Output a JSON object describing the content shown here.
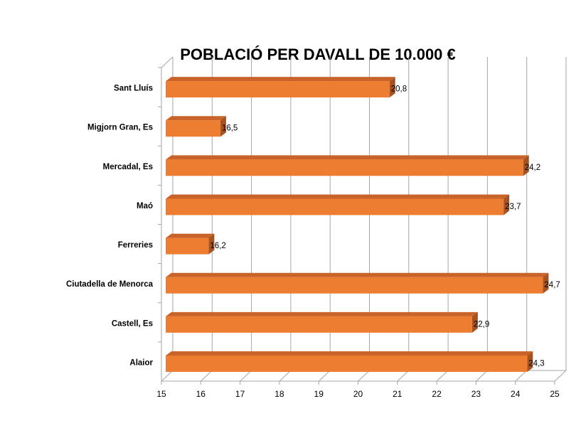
{
  "chart_data": {
    "type": "bar",
    "orientation": "horizontal",
    "title": "POBLACIÓ PER DAVALL DE 10.000 €",
    "categories": [
      "Sant Lluís",
      "Migjorn Gran, Es",
      "Mercadal, Es",
      "Maó",
      "Ferreries",
      "Ciutadella de Menorca",
      "Castell, Es",
      "Alaior"
    ],
    "values": [
      20.8,
      16.5,
      24.2,
      23.7,
      16.2,
      24.7,
      22.9,
      24.3
    ],
    "data_labels": [
      "20,8",
      "16,5",
      "24,2",
      "23,7",
      "16,2",
      "24,7",
      "22,9",
      "24,3"
    ],
    "xlim": [
      15,
      25
    ],
    "xticks": [
      "15",
      "16",
      "17",
      "18",
      "19",
      "20",
      "21",
      "22",
      "23",
      "24",
      "25"
    ],
    "grid": true,
    "bar_color": "#ED7D31",
    "bar_top_color": "#C8642A",
    "bar_side_color": "#A8531F"
  }
}
